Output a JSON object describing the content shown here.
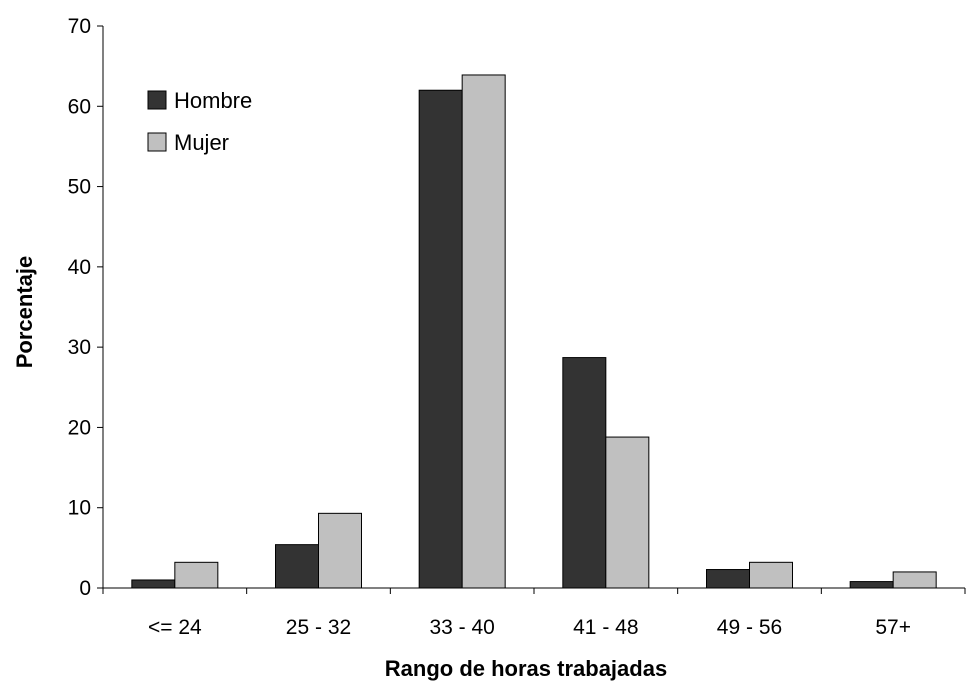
{
  "chart_data": {
    "type": "bar",
    "title": "",
    "xlabel": "Rango de horas trabajadas",
    "ylabel": "Porcentaje",
    "categories": [
      "<= 24",
      "25 - 32",
      "33 - 40",
      "41 - 48",
      "49 - 56",
      "57+"
    ],
    "series": [
      {
        "name": "Hombre",
        "color": "#333333",
        "values": [
          1.0,
          5.4,
          62.0,
          28.7,
          2.3,
          0.8
        ]
      },
      {
        "name": "Mujer",
        "color": "#c0c0c0",
        "values": [
          3.2,
          9.3,
          63.9,
          18.8,
          3.2,
          2.0
        ]
      }
    ],
    "ylim": [
      0,
      70
    ],
    "yticks": [
      "0",
      "10",
      "20",
      "30",
      "40",
      "50",
      "60",
      "70"
    ],
    "grid": false,
    "legend_position": "top-left"
  }
}
